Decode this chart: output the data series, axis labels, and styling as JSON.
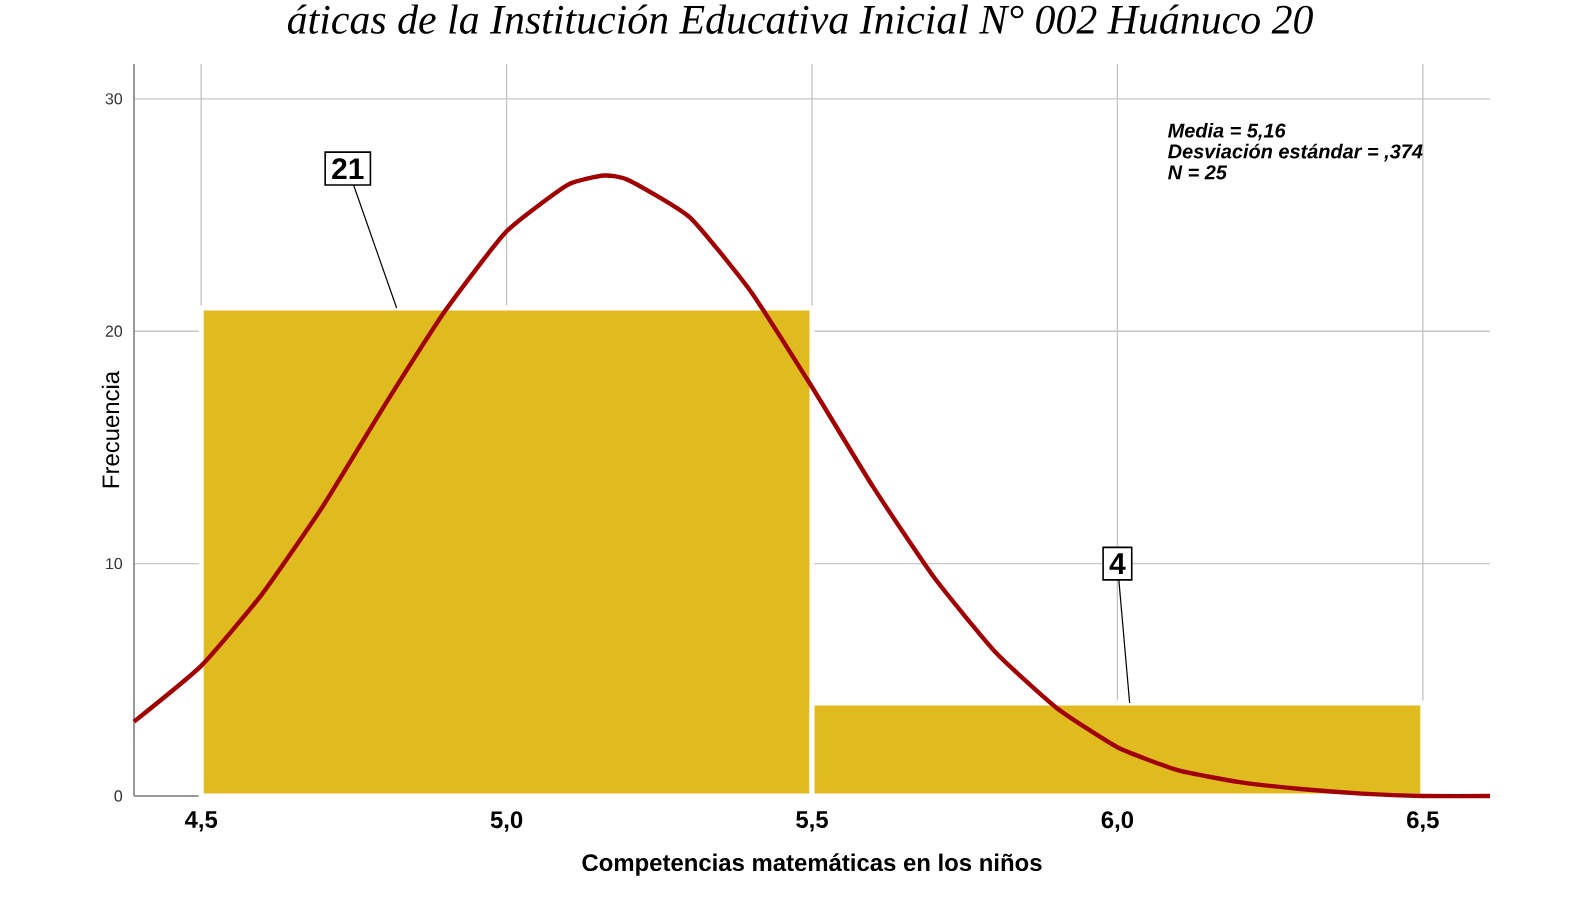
{
  "chart_data": {
    "type": "histogram",
    "title": "áticas de la Institución Educativa Inicial N° 002 Huánuco 20",
    "xlabel": "Competencias matemáticas en los niños",
    "ylabel": "Frecuencia",
    "bins": [
      4.5,
      5.5,
      6.5
    ],
    "values": [
      21,
      4
    ],
    "color": "#e0bb20",
    "series": [
      {
        "type": "line",
        "color": "#a00000",
        "x": [
          4.39,
          4.5,
          4.6,
          4.7,
          4.8,
          4.9,
          5.0,
          5.1,
          5.16,
          5.2,
          5.3,
          5.4,
          5.5,
          5.6,
          5.7,
          5.8,
          5.9,
          6.0,
          6.1,
          6.2,
          6.3,
          6.4,
          6.5,
          6.61
        ],
        "values": [
          3.2,
          5.6,
          8.7,
          12.5,
          16.8,
          20.9,
          24.3,
          26.3,
          26.7,
          26.5,
          24.9,
          21.7,
          17.6,
          13.3,
          9.4,
          6.2,
          3.8,
          2.1,
          1.1,
          0.6,
          0.3,
          0.1,
          0,
          0
        ]
      }
    ],
    "xlim": [
      4.39,
      6.61
    ],
    "ylim": [
      0,
      31.5
    ],
    "xticks": [
      {
        "value": 4.5,
        "label": "4,5"
      },
      {
        "value": 5.0,
        "label": "5,0"
      },
      {
        "value": 5.5,
        "label": "5,5"
      },
      {
        "value": 6.0,
        "label": "6,0"
      },
      {
        "value": 6.5,
        "label": "6,5"
      }
    ],
    "yticks": [
      0,
      10,
      20,
      30
    ],
    "grid": true,
    "annotations": [
      {
        "text": "21",
        "x": 4.82,
        "y": 21
      },
      {
        "text": "4",
        "x": 6.02,
        "y": 4
      },
      "Media = 5,16",
      "Desviación estándar = ,374",
      "N = 25"
    ]
  }
}
